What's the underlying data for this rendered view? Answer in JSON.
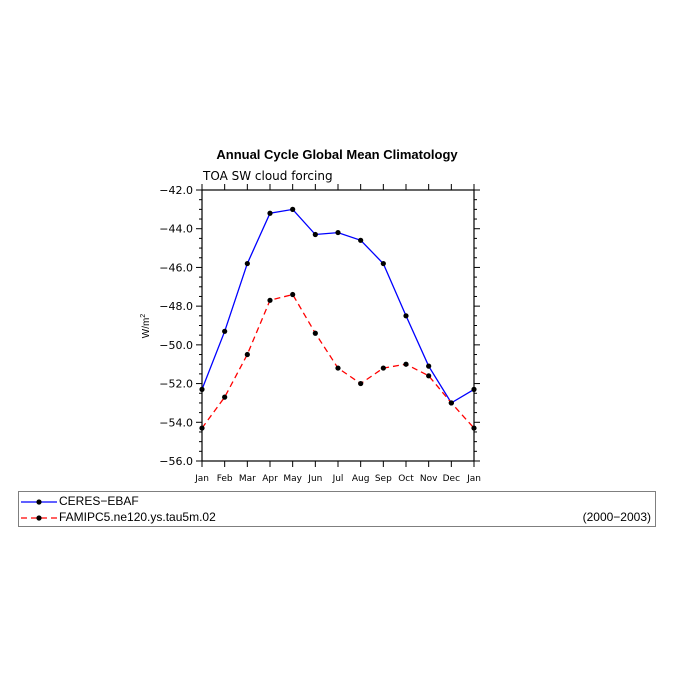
{
  "chart_data": {
    "type": "line",
    "title": "Annual Cycle Global Mean Climatology",
    "subtitle": "TOA SW cloud forcing",
    "xlabel": "",
    "ylabel_base": "W/m",
    "ylabel_sup": "2",
    "categories": [
      "Jan",
      "Feb",
      "Mar",
      "Apr",
      "May",
      "Jun",
      "Jul",
      "Aug",
      "Sep",
      "Oct",
      "Nov",
      "Dec",
      "Jan"
    ],
    "ylim": [
      -56.0,
      -42.0
    ],
    "yticks": [
      -42.0,
      -44.0,
      -46.0,
      -48.0,
      -50.0,
      -52.0,
      -54.0,
      -56.0
    ],
    "ytick_labels": [
      "−42.0",
      "−44.0",
      "−46.0",
      "−48.0",
      "−50.0",
      "−52.0",
      "−54.0",
      "−56.0"
    ],
    "series": [
      {
        "name": "CERES−EBAF",
        "color": "#0000ff",
        "dash": "solid",
        "values": [
          -52.3,
          -49.3,
          -45.8,
          -43.2,
          -43.0,
          -44.3,
          -44.2,
          -44.6,
          -45.8,
          -48.5,
          -51.1,
          -53.0,
          -52.3
        ]
      },
      {
        "name": "FAMIPC5.ne120.ys.tau5m.02",
        "color": "#ff0000",
        "dash": "dashed",
        "values": [
          -54.3,
          -52.7,
          -50.5,
          -47.7,
          -47.4,
          -49.4,
          -51.2,
          -52.0,
          -51.2,
          -51.0,
          -51.6,
          -53.0,
          -54.3
        ]
      }
    ],
    "legend_extra": "(2000−2003)",
    "grid": false,
    "legend_placement": "bottom"
  }
}
